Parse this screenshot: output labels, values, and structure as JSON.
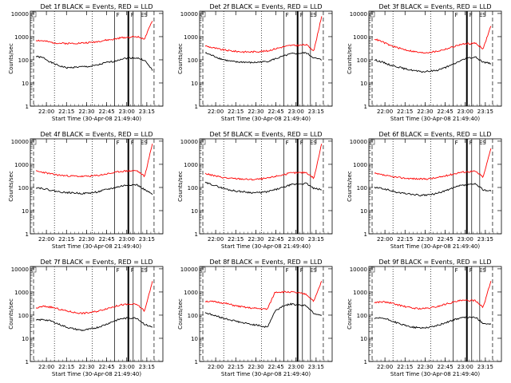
{
  "figure": {
    "xlabel": "Start Time (30-Apr-08 21:49:40)",
    "ylabel": "Counts/sec",
    "x_tick_labels": [
      "22:00",
      "22:15",
      "22:30",
      "22:45",
      "23:00",
      "23:15"
    ],
    "y_tick_labels": [
      "1",
      "10",
      "100",
      "1000",
      "10000"
    ],
    "colors": {
      "events": "#000000",
      "lld": "#ff0000",
      "markers": "#000000"
    }
  },
  "chart_data": [
    {
      "type": "line",
      "title": "Det 1f BLACK = Events, RED = LLD",
      "flag_labels": [
        "F",
        "F",
        "ES"
      ],
      "series": [
        {
          "color": "#000000",
          "profile": [
            140,
            120,
            75,
            55,
            45,
            48,
            50,
            52,
            60,
            75,
            85,
            110,
            120,
            120,
            95,
            35
          ]
        },
        {
          "color": "#ff0000",
          "profile": [
            700,
            650,
            560,
            520,
            510,
            520,
            530,
            560,
            620,
            700,
            760,
            900,
            950,
            1000,
            800,
            5000
          ]
        }
      ]
    },
    {
      "type": "line",
      "title": "Det 2f BLACK = Events, RED = LLD",
      "flag_labels": [
        "F",
        "F",
        "ES"
      ],
      "series": [
        {
          "color": "#000000",
          "profile": [
            200,
            150,
            110,
            90,
            80,
            80,
            75,
            80,
            85,
            110,
            140,
            180,
            190,
            200,
            120,
            100
          ]
        },
        {
          "color": "#ff0000",
          "profile": [
            400,
            330,
            280,
            250,
            230,
            220,
            220,
            230,
            240,
            300,
            360,
            420,
            420,
            450,
            250,
            8000
          ]
        }
      ]
    },
    {
      "type": "line",
      "title": "Det 3f BLACK = Events, RED = LLD",
      "flag_labels": [
        "F",
        "F",
        "ES"
      ],
      "series": [
        {
          "color": "#000000",
          "profile": [
            100,
            80,
            60,
            50,
            40,
            35,
            30,
            32,
            35,
            45,
            60,
            90,
            120,
            130,
            80,
            70
          ]
        },
        {
          "color": "#ff0000",
          "profile": [
            800,
            600,
            420,
            330,
            270,
            230,
            200,
            210,
            230,
            280,
            350,
            450,
            500,
            520,
            300,
            3000
          ]
        }
      ]
    },
    {
      "type": "line",
      "title": "Det 4f BLACK = Events, RED = LLD",
      "flag_labels": [
        "F",
        "F",
        "ES"
      ],
      "series": [
        {
          "color": "#000000",
          "profile": [
            100,
            90,
            75,
            65,
            60,
            58,
            55,
            58,
            65,
            80,
            95,
            115,
            130,
            130,
            80,
            50
          ]
        },
        {
          "color": "#ff0000",
          "profile": [
            500,
            450,
            380,
            340,
            320,
            310,
            300,
            310,
            330,
            380,
            430,
            500,
            520,
            530,
            300,
            8000
          ]
        }
      ]
    },
    {
      "type": "line",
      "title": "Det 5f BLACK = Events, RED = LLD",
      "flag_labels": [
        "F",
        "F",
        "ES"
      ],
      "series": [
        {
          "color": "#000000",
          "profile": [
            160,
            130,
            100,
            80,
            70,
            65,
            60,
            60,
            65,
            80,
            100,
            130,
            140,
            150,
            90,
            80
          ]
        },
        {
          "color": "#ff0000",
          "profile": [
            400,
            330,
            280,
            250,
            240,
            230,
            220,
            230,
            250,
            300,
            350,
            420,
            430,
            450,
            250,
            8000
          ]
        }
      ]
    },
    {
      "type": "line",
      "title": "Det 6f BLACK = Events, RED = LLD",
      "flag_labels": [
        "F",
        "F",
        "ES"
      ],
      "series": [
        {
          "color": "#000000",
          "profile": [
            100,
            90,
            75,
            60,
            55,
            50,
            45,
            48,
            55,
            70,
            90,
            120,
            130,
            140,
            80,
            70
          ]
        },
        {
          "color": "#ff0000",
          "profile": [
            400,
            350,
            300,
            270,
            250,
            240,
            230,
            240,
            260,
            310,
            370,
            450,
            480,
            500,
            280,
            5000
          ]
        }
      ]
    },
    {
      "type": "line",
      "title": "Det 7f BLACK = Events, RED = LLD",
      "flag_labels": [
        "F",
        "F",
        "ES"
      ],
      "series": [
        {
          "color": "#000000",
          "profile": [
            60,
            65,
            55,
            40,
            30,
            25,
            22,
            25,
            30,
            40,
            55,
            70,
            75,
            75,
            40,
            30
          ]
        },
        {
          "color": "#ff0000",
          "profile": [
            200,
            240,
            220,
            180,
            150,
            130,
            120,
            130,
            150,
            190,
            230,
            280,
            290,
            290,
            150,
            3000
          ]
        }
      ]
    },
    {
      "type": "line",
      "title": "Det 8f BLACK = Events, RED = LLD",
      "flag_labels": [
        "F",
        "F",
        "ES"
      ],
      "series": [
        {
          "color": "#000000",
          "profile": [
            130,
            100,
            80,
            65,
            55,
            45,
            40,
            35,
            30,
            150,
            250,
            300,
            280,
            260,
            120,
            100
          ]
        },
        {
          "color": "#ff0000",
          "profile": [
            400,
            380,
            350,
            300,
            250,
            220,
            200,
            190,
            180,
            1000,
            1000,
            1000,
            900,
            800,
            400,
            3000
          ]
        }
      ]
    },
    {
      "type": "line",
      "title": "Det 9f BLACK = Events, RED = LLD",
      "flag_labels": [
        "F",
        "F",
        "ES"
      ],
      "series": [
        {
          "color": "#000000",
          "profile": [
            70,
            75,
            60,
            45,
            35,
            30,
            28,
            30,
            35,
            45,
            60,
            75,
            80,
            80,
            45,
            40
          ]
        },
        {
          "color": "#ff0000",
          "profile": [
            350,
            380,
            340,
            280,
            230,
            200,
            190,
            200,
            230,
            290,
            350,
            420,
            430,
            430,
            220,
            3000
          ]
        }
      ]
    }
  ]
}
